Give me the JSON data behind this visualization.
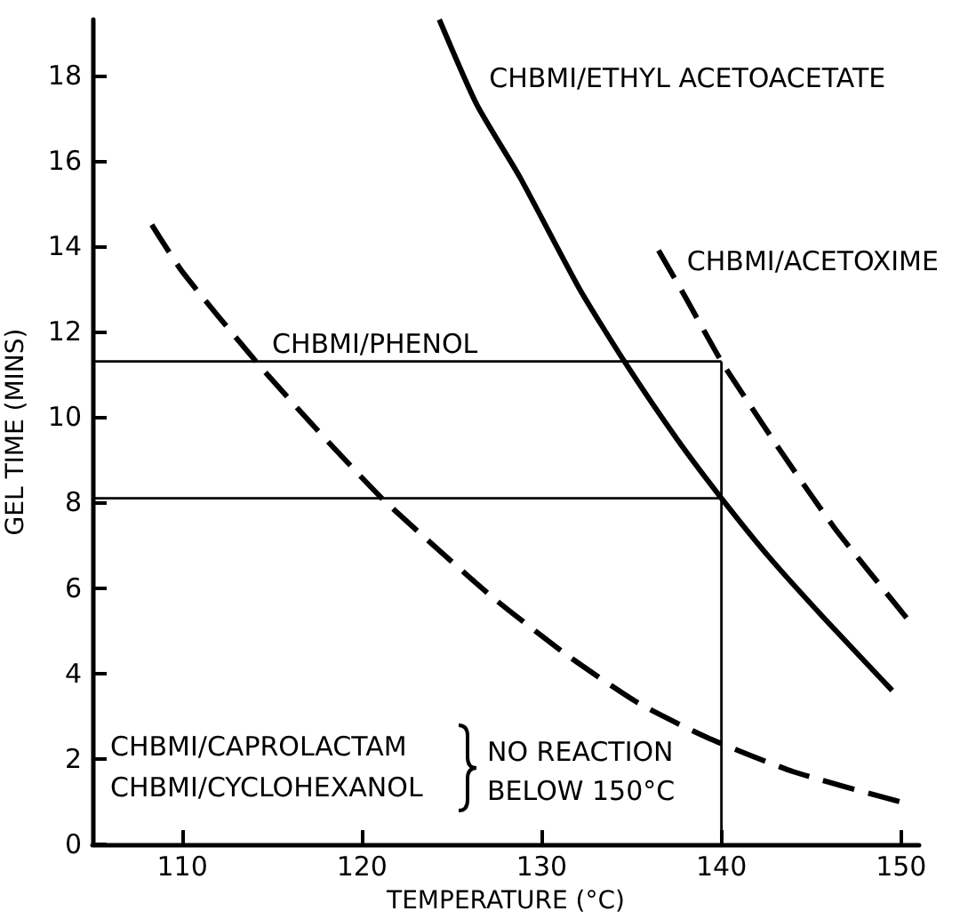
{
  "chart_data": {
    "type": "line",
    "xlabel": "TEMPERATURE (°C)",
    "ylabel": "GEL TIME (MINS)",
    "xlim": [
      105,
      151
    ],
    "xticks": [
      110,
      120,
      130,
      140,
      150
    ],
    "ylim": [
      0,
      19.3
    ],
    "yticks": [
      0,
      2,
      4,
      6,
      8,
      10,
      12,
      14,
      16,
      18
    ],
    "grid": false,
    "legend": false,
    "marker": "none",
    "series": [
      {
        "name": "CHBMI/PHENOL",
        "color": "#000000",
        "line_style": "dashed",
        "x": [
          108.3,
          110,
          114.1,
          117.5,
          121.1,
          124.5,
          127.5,
          131.5,
          135.4,
          139.2,
          144,
          149.9
        ],
        "values": [
          14.5,
          13.4,
          11.3,
          9.7,
          8.1,
          6.8,
          5.7,
          4.4,
          3.3,
          2.5,
          1.7,
          1.0
        ]
      },
      {
        "name": "CHBMI/ETHYL ACETOACETATE",
        "color": "#000000",
        "line_style": "solid",
        "x": [
          124.3,
          126.4,
          128.8,
          132.1,
          134.6,
          137.5,
          140,
          142.7,
          145.7,
          149.5
        ],
        "values": [
          19.3,
          17.3,
          15.6,
          13.0,
          11.3,
          9.5,
          8.1,
          6.7,
          5.3,
          3.6
        ]
      },
      {
        "name": "CHBMI/ACETOXIME",
        "color": "#000000",
        "line_style": "dashed",
        "x": [
          136.5,
          138,
          140,
          141.4,
          143.3,
          146.3,
          150.3
        ],
        "values": [
          13.9,
          12.8,
          11.3,
          10.4,
          9.2,
          7.4,
          5.3
        ]
      },
      {
        "color": "#000000",
        "line_style": "solid",
        "x": [
          105,
          140
        ],
        "values": [
          11.3,
          11.3
        ]
      },
      {
        "color": "#000000",
        "line_style": "solid",
        "x": [
          105,
          140
        ],
        "values": [
          8.1,
          8.1
        ]
      },
      {
        "color": "#000000",
        "line_style": "solid",
        "x": [
          140,
          140
        ],
        "values": [
          0,
          11.3
        ]
      }
    ],
    "annotations": [
      "CHBMI/CAPROLACTAM",
      "CHBMI/CYCLOHEXANOL",
      "NO REACTION",
      "BELOW 150°C"
    ]
  }
}
